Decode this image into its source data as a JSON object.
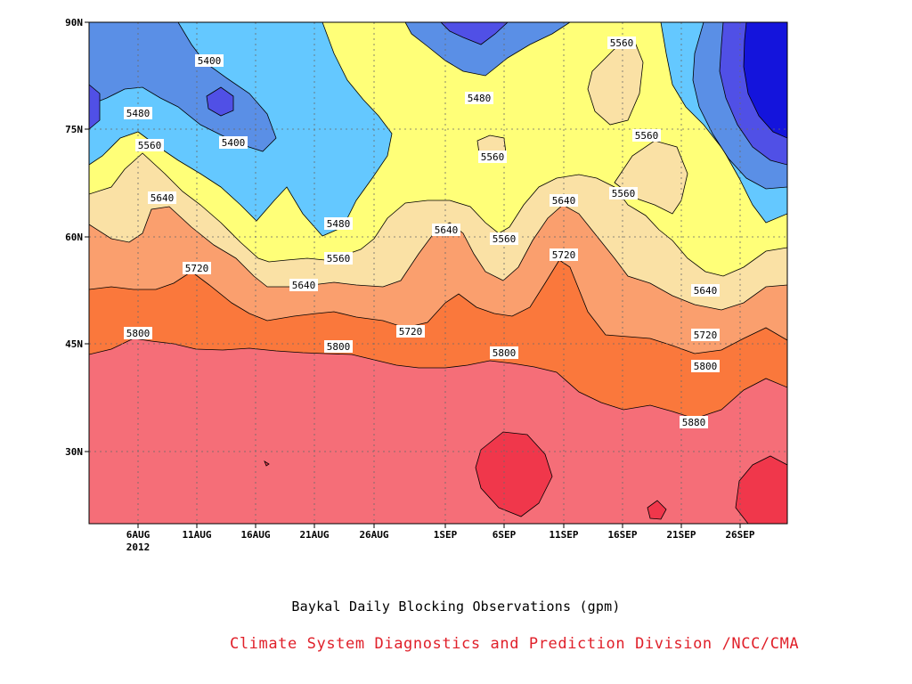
{
  "chart_data": {
    "type": "contour",
    "title": "Baykal Daily Blocking Observations (gpm)",
    "y_ticks": [
      "90N",
      "75N",
      "60N",
      "45N",
      "30N"
    ],
    "x_ticks": [
      "6AUG",
      "11AUG",
      "16AUG",
      "21AUG",
      "26AUG",
      "1SEP",
      "6SEP",
      "11SEP",
      "16SEP",
      "21SEP",
      "26SEP"
    ],
    "x_year": "2012",
    "ylim": [
      "20N",
      "90N"
    ],
    "contour_levels": [
      5320,
      5400,
      5480,
      5560,
      5640,
      5720,
      5800,
      5880
    ],
    "contour_labels": [
      "5400",
      "5400",
      "5480",
      "5480",
      "5480",
      "5560",
      "5560",
      "5560",
      "5560",
      "5560",
      "5560",
      "5560",
      "5640",
      "5640",
      "5640",
      "5640",
      "5640",
      "5720",
      "5720",
      "5720",
      "5720",
      "5800",
      "5800",
      "5800",
      "5800",
      "5880"
    ],
    "fill_colors": {
      "below_5320": "#1414dc",
      "5320_5400": "#5050e6",
      "5400_5480": "#5a8fe6",
      "5480_5560": "#64c8ff",
      "5560_5640": "#ffff78",
      "5640_5720": "#fae1a5",
      "5720_5800": "#fa9f6e",
      "5800_5880": "#fa783c",
      "5880_5960": "#f56e78",
      "above_5960": "#f0374b"
    },
    "grid": true
  },
  "footer": {
    "title": "Baykal Daily Blocking Observations (gpm)",
    "credit": "Climate System Diagnostics and Prediction Division /NCC/CMA"
  }
}
